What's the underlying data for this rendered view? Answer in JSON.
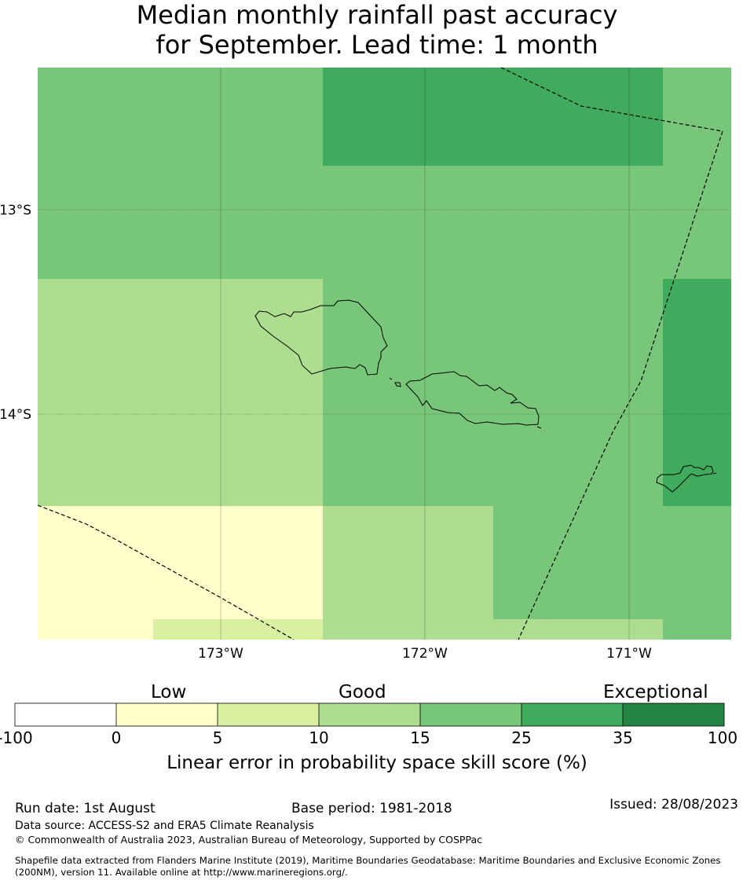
{
  "title": {
    "line1": "Median monthly rainfall past accuracy",
    "line2": "for September. Lead time: 1 month"
  },
  "map": {
    "lat_labels": [
      "13°S",
      "14°S"
    ],
    "lon_labels": [
      "173°W",
      "172°W",
      "171°W"
    ],
    "colors": {
      "c0_5": "#ffffcc",
      "c5_10": "#d9f0a3",
      "c10_15": "#addd8e",
      "c15_25": "#78c679",
      "c25_35": "#41ab5d",
      "c35_100": "#238443",
      "boundary": "#000000"
    }
  },
  "colorbar": {
    "category_labels": [
      "Low",
      "Good",
      "Exceptional"
    ],
    "ticks": [
      "-100",
      "0",
      "5",
      "10",
      "15",
      "25",
      "35",
      "100"
    ],
    "segment_colors": [
      "#ffffff",
      "#ffffcc",
      "#d9f0a3",
      "#addd8e",
      "#78c679",
      "#41ab5d",
      "#238443"
    ],
    "title": "Linear error in probability space skill score (%)"
  },
  "footer": {
    "run_date": "Run date: 1st August",
    "base_period": "Base period: 1981-2018",
    "issued": "Issued: 28/08/2023",
    "data_source": "Data source: ACCESS-S2 and ERA5 Climate Reanalysis",
    "copyright": "© Commonwealth of Australia 2023, Australian Bureau of Meteorology, Supported by COSPPac",
    "shapefile_line1": "Shapefile data extracted from Flanders Marine Institute (2019), Maritime Boundaries Geodatabase: Maritime Boundaries and Exclusive Economic Zones",
    "shapefile_line2": "(200NM), version 11. Available online at http://www.marineregions.org/."
  }
}
